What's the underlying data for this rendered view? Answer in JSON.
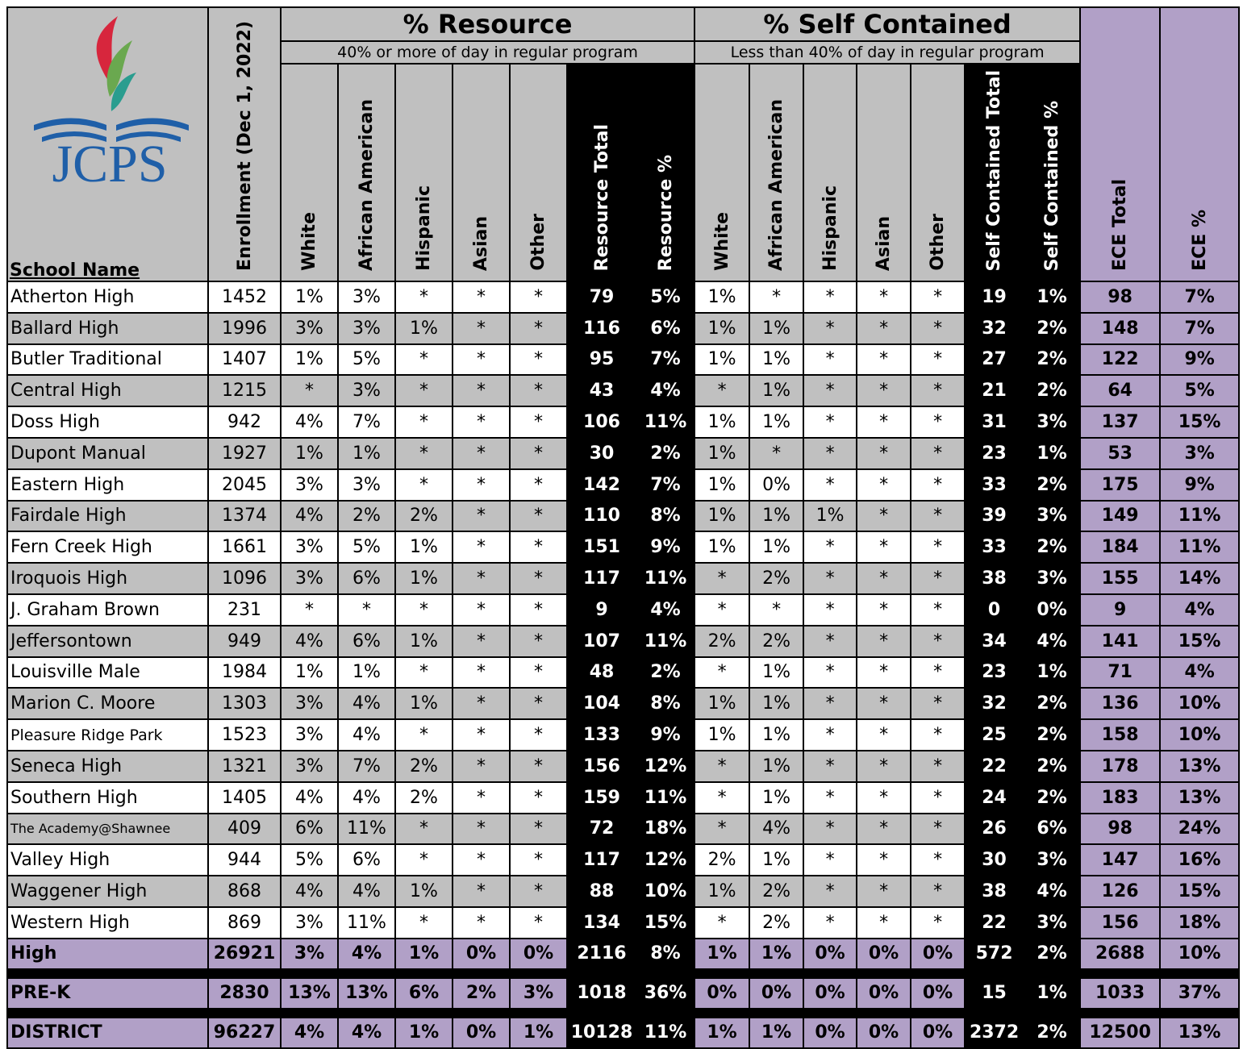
{
  "header": {
    "logo_text": "JCPS",
    "group_resource": "% Resource",
    "resource_sub": "40% or more of day in regular program",
    "group_self": "% Self Contained",
    "self_sub": "Less than 40% of day in regular program",
    "columns": [
      "School Name",
      "Enrollment (Dec 1, 2022)",
      "White",
      "African American",
      "Hispanic",
      "Asian",
      "Other",
      "Resource Total",
      "Resource %",
      "White",
      "African American",
      "Hispanic",
      "Asian",
      "Other",
      "Self Contained Total",
      "Self Contained %",
      "ECE Total",
      "ECE %"
    ]
  },
  "table": {
    "rows": [
      [
        "Atherton High",
        "1452",
        "1%",
        "3%",
        "*",
        "*",
        "*",
        "79",
        "5%",
        "1%",
        "*",
        "*",
        "*",
        "*",
        "19",
        "1%",
        "98",
        "7%"
      ],
      [
        "Ballard High",
        "1996",
        "3%",
        "3%",
        "1%",
        "*",
        "*",
        "116",
        "6%",
        "1%",
        "1%",
        "*",
        "*",
        "*",
        "32",
        "2%",
        "148",
        "7%"
      ],
      [
        "Butler Traditional",
        "1407",
        "1%",
        "5%",
        "*",
        "*",
        "*",
        "95",
        "7%",
        "1%",
        "1%",
        "*",
        "*",
        "*",
        "27",
        "2%",
        "122",
        "9%"
      ],
      [
        "Central High",
        "1215",
        "*",
        "3%",
        "*",
        "*",
        "*",
        "43",
        "4%",
        "*",
        "1%",
        "*",
        "*",
        "*",
        "21",
        "2%",
        "64",
        "5%"
      ],
      [
        "Doss High",
        "942",
        "4%",
        "7%",
        "*",
        "*",
        "*",
        "106",
        "11%",
        "1%",
        "1%",
        "*",
        "*",
        "*",
        "31",
        "3%",
        "137",
        "15%"
      ],
      [
        "Dupont Manual",
        "1927",
        "1%",
        "1%",
        "*",
        "*",
        "*",
        "30",
        "2%",
        "1%",
        "*",
        "*",
        "*",
        "*",
        "23",
        "1%",
        "53",
        "3%"
      ],
      [
        "Eastern High",
        "2045",
        "3%",
        "3%",
        "*",
        "*",
        "*",
        "142",
        "7%",
        "1%",
        "0%",
        "*",
        "*",
        "*",
        "33",
        "2%",
        "175",
        "9%"
      ],
      [
        "Fairdale High",
        "1374",
        "4%",
        "2%",
        "2%",
        "*",
        "*",
        "110",
        "8%",
        "1%",
        "1%",
        "1%",
        "*",
        "*",
        "39",
        "3%",
        "149",
        "11%"
      ],
      [
        "Fern Creek High",
        "1661",
        "3%",
        "5%",
        "1%",
        "*",
        "*",
        "151",
        "9%",
        "1%",
        "1%",
        "*",
        "*",
        "*",
        "33",
        "2%",
        "184",
        "11%"
      ],
      [
        "Iroquois High",
        "1096",
        "3%",
        "6%",
        "1%",
        "*",
        "*",
        "117",
        "11%",
        "*",
        "2%",
        "*",
        "*",
        "*",
        "38",
        "3%",
        "155",
        "14%"
      ],
      [
        "J. Graham Brown",
        "231",
        "*",
        "*",
        "*",
        "*",
        "*",
        "9",
        "4%",
        "*",
        "*",
        "*",
        "*",
        "*",
        "0",
        "0%",
        "9",
        "4%"
      ],
      [
        "Jeffersontown",
        "949",
        "4%",
        "6%",
        "1%",
        "*",
        "*",
        "107",
        "11%",
        "2%",
        "2%",
        "*",
        "*",
        "*",
        "34",
        "4%",
        "141",
        "15%"
      ],
      [
        "Louisville Male",
        "1984",
        "1%",
        "1%",
        "*",
        "*",
        "*",
        "48",
        "2%",
        "*",
        "1%",
        "*",
        "*",
        "*",
        "23",
        "1%",
        "71",
        "4%"
      ],
      [
        "Marion C. Moore",
        "1303",
        "3%",
        "4%",
        "1%",
        "*",
        "*",
        "104",
        "8%",
        "1%",
        "1%",
        "*",
        "*",
        "*",
        "32",
        "2%",
        "136",
        "10%"
      ],
      [
        "Pleasure Ridge Park",
        "1523",
        "3%",
        "4%",
        "*",
        "*",
        "*",
        "133",
        "9%",
        "1%",
        "1%",
        "*",
        "*",
        "*",
        "25",
        "2%",
        "158",
        "10%"
      ],
      [
        "Seneca High",
        "1321",
        "3%",
        "7%",
        "2%",
        "*",
        "*",
        "156",
        "12%",
        "*",
        "1%",
        "*",
        "*",
        "*",
        "22",
        "2%",
        "178",
        "13%"
      ],
      [
        "Southern High",
        "1405",
        "4%",
        "4%",
        "2%",
        "*",
        "*",
        "159",
        "11%",
        "*",
        "1%",
        "*",
        "*",
        "*",
        "24",
        "2%",
        "183",
        "13%"
      ],
      [
        "The Academy@Shawnee",
        "409",
        "6%",
        "11%",
        "*",
        "*",
        "*",
        "72",
        "18%",
        "*",
        "4%",
        "*",
        "*",
        "*",
        "26",
        "6%",
        "98",
        "24%"
      ],
      [
        "Valley High",
        "944",
        "5%",
        "6%",
        "*",
        "*",
        "*",
        "117",
        "12%",
        "2%",
        "1%",
        "*",
        "*",
        "*",
        "30",
        "3%",
        "147",
        "16%"
      ],
      [
        "Waggener High",
        "868",
        "4%",
        "4%",
        "1%",
        "*",
        "*",
        "88",
        "10%",
        "1%",
        "2%",
        "*",
        "*",
        "*",
        "38",
        "4%",
        "126",
        "15%"
      ],
      [
        "Western High",
        "869",
        "3%",
        "11%",
        "*",
        "*",
        "*",
        "134",
        "15%",
        "*",
        "2%",
        "*",
        "*",
        "*",
        "22",
        "3%",
        "156",
        "18%"
      ]
    ],
    "summary": [
      [
        "High",
        "26921",
        "3%",
        "4%",
        "1%",
        "0%",
        "0%",
        "2116",
        "8%",
        "1%",
        "1%",
        "0%",
        "0%",
        "0%",
        "572",
        "2%",
        "2688",
        "10%"
      ],
      [
        "PRE-K",
        "2830",
        "13%",
        "13%",
        "6%",
        "2%",
        "3%",
        "1018",
        "36%",
        "0%",
        "0%",
        "0%",
        "0%",
        "0%",
        "15",
        "1%",
        "1033",
        "37%"
      ],
      [
        "DISTRICT",
        "96227",
        "4%",
        "4%",
        "1%",
        "0%",
        "1%",
        "10128",
        "11%",
        "1%",
        "1%",
        "0%",
        "0%",
        "0%",
        "2372",
        "2%",
        "12500",
        "13%"
      ]
    ]
  }
}
